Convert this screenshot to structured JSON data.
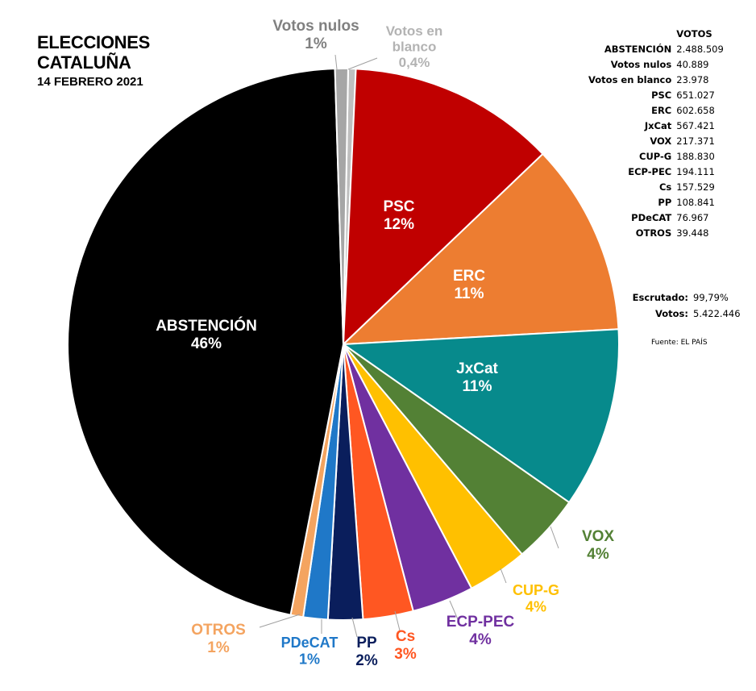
{
  "title": {
    "line1": "ELECCIONES",
    "line2": "CATALUÑA",
    "date": "14 FEBRERO 2021"
  },
  "chart_data": {
    "type": "pie",
    "title": "ELECCIONES CATALUÑA",
    "subtitle": "14 FEBRERO 2021",
    "slices": [
      {
        "label": "Votos en blanco",
        "label_lines": [
          "Votos en",
          "blanco"
        ],
        "pct_label": "0,4%",
        "value": 23978,
        "color": "#bfbfbf",
        "text_color": "#b3b3b3",
        "outside": true
      },
      {
        "label": "PSC",
        "pct_label": "12%",
        "value": 651027,
        "color": "#c00000",
        "text_color": "#ffffff",
        "outside": false
      },
      {
        "label": "ERC",
        "pct_label": "11%",
        "value": 602658,
        "color": "#ed7d31",
        "text_color": "#ffffff",
        "outside": false
      },
      {
        "label": "JxCat",
        "pct_label": "11%",
        "value": 567421,
        "color": "#078a8c",
        "text_color": "#ffffff",
        "outside": false
      },
      {
        "label": "VOX",
        "pct_label": "4%",
        "value": 217371,
        "color": "#538135",
        "text_color": "#538135",
        "outside": true
      },
      {
        "label": "CUP-G",
        "pct_label": "4%",
        "value": 188830,
        "color": "#ffc000",
        "text_color": "#ffc000",
        "outside": true
      },
      {
        "label": "ECP-PEC",
        "pct_label": "4%",
        "value": 194111,
        "color": "#7030a0",
        "text_color": "#7030a0",
        "outside": true
      },
      {
        "label": "Cs",
        "pct_label": "3%",
        "value": 157529,
        "color": "#ff5722",
        "text_color": "#ff5722",
        "outside": true
      },
      {
        "label": "PP",
        "pct_label": "2%",
        "value": 108841,
        "color": "#0a1e5c",
        "text_color": "#0a1e5c",
        "outside": true
      },
      {
        "label": "PDeCAT",
        "pct_label": "1%",
        "value": 76967,
        "color": "#1f78c8",
        "text_color": "#1f78c8",
        "outside": true
      },
      {
        "label": "OTROS",
        "pct_label": "1%",
        "value": 39448,
        "color": "#f4a460",
        "text_color": "#f4a460",
        "outside": true
      },
      {
        "label": "ABSTENCIÓN",
        "pct_label": "46%",
        "value": 2488509,
        "color": "#000000",
        "text_color": "#ffffff",
        "outside": false
      },
      {
        "label": "Votos nulos",
        "pct_label": "1%",
        "value": 40889,
        "color": "#a6a6a6",
        "text_color": "#808080",
        "outside": true
      }
    ]
  },
  "votes_table": {
    "header": "VOTOS",
    "rows": [
      {
        "label": "ABSTENCIÓN",
        "value": "2.488.509"
      },
      {
        "label": "Votos nulos",
        "value": "40.889"
      },
      {
        "label": "Votos en blanco",
        "value": "23.978"
      },
      {
        "label": "PSC",
        "value": "651.027"
      },
      {
        "label": "ERC",
        "value": "602.658"
      },
      {
        "label": "JxCat",
        "value": "567.421"
      },
      {
        "label": "VOX",
        "value": "217.371"
      },
      {
        "label": "CUP-G",
        "value": "188.830"
      },
      {
        "label": "ECP-PEC",
        "value": "194.111"
      },
      {
        "label": "Cs",
        "value": "157.529"
      },
      {
        "label": "PP",
        "value": "108.841"
      },
      {
        "label": "PDeCAT",
        "value": "76.967"
      },
      {
        "label": "OTROS",
        "value": "39.448"
      }
    ]
  },
  "totals": {
    "escrutado_label": "Escrutado:",
    "escrutado_value": "99,79%",
    "votos_label": "Votos:",
    "votos_value": "5.422.446"
  },
  "source": "Fuente: EL PAÍS"
}
